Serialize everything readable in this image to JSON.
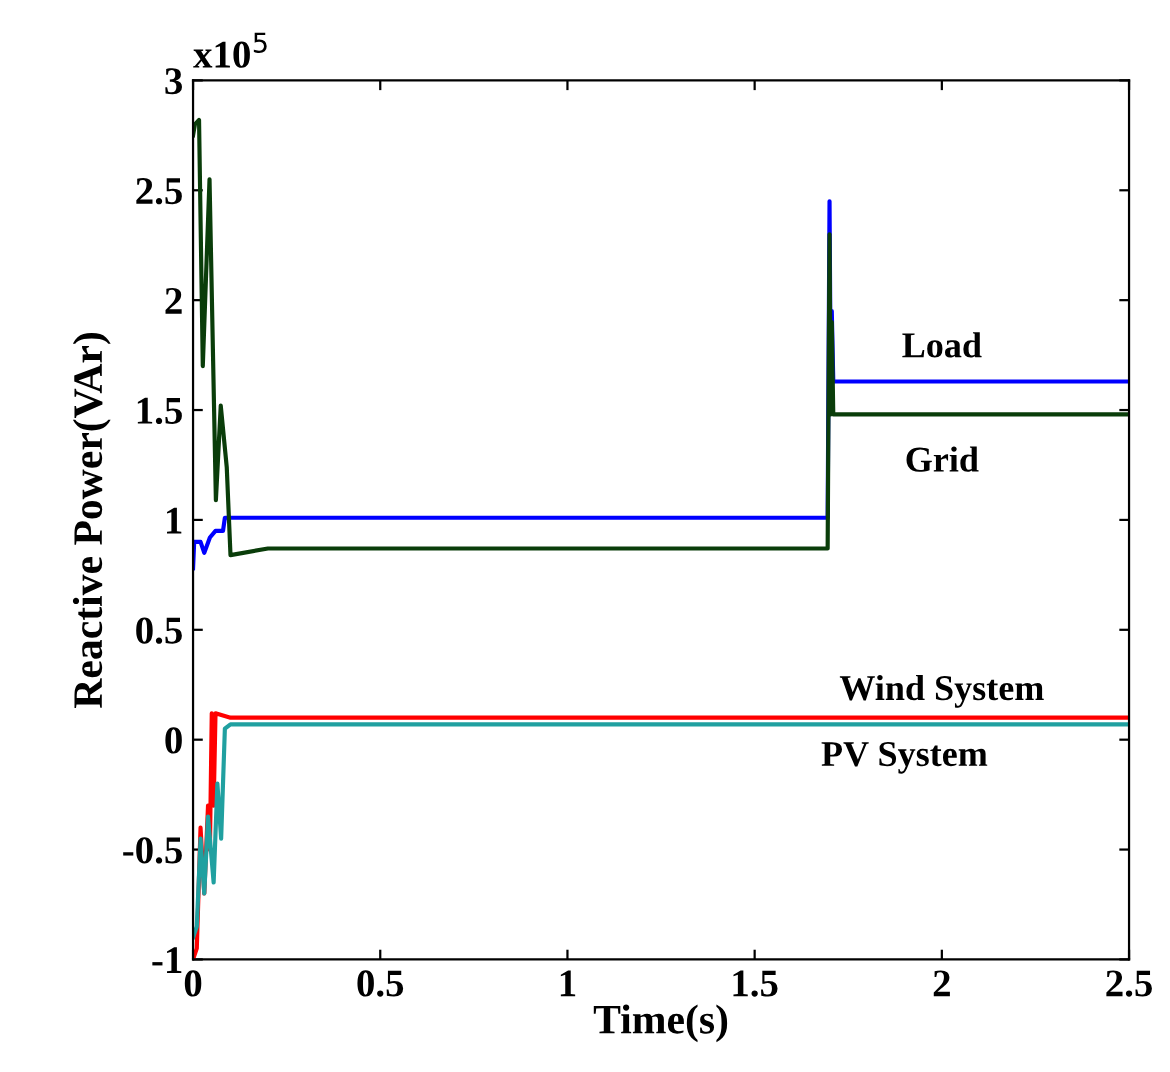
{
  "chart_data": {
    "type": "line",
    "xlabel": "Time(s)",
    "ylabel": "Reactive Power(VAr)",
    "annotations": [
      "x10$^{5}$"
    ],
    "xlim": [
      0,
      2.5
    ],
    "ylim": [
      -1,
      3
    ],
    "xticks": [
      0,
      0.5,
      1,
      1.5,
      2,
      2.5
    ],
    "yticks": [
      -1,
      -0.5,
      0,
      0.5,
      1,
      1.5,
      2,
      2.5,
      3
    ],
    "grid": false,
    "legend": false,
    "line_style": "solid",
    "marker": "none",
    "series": [
      {
        "name": "Load",
        "color": "#0000ff",
        "x": [
          0,
          0.003,
          0.02,
          0.03,
          0.045,
          0.06,
          0.08,
          0.085,
          1.695,
          1.7,
          1.703,
          1.706,
          1.71,
          2.5
        ],
        "values": [
          0.78,
          0.9,
          0.9,
          0.85,
          0.92,
          0.95,
          0.95,
          1.01,
          1.01,
          2.45,
          1.63,
          1.95,
          1.63,
          1.63
        ]
      },
      {
        "name": "Grid",
        "color": "#0a3d0a",
        "x": [
          0,
          0.005,
          0.016,
          0.026,
          0.044,
          0.061,
          0.074,
          0.09,
          0.1,
          0.2,
          0.5,
          1.0,
          1.5,
          1.695,
          1.7,
          1.703,
          1.706,
          1.71,
          2.0,
          2.5
        ],
        "values": [
          2.75,
          2.8,
          2.82,
          1.7,
          2.55,
          1.09,
          1.52,
          1.24,
          0.84,
          0.87,
          0.87,
          0.87,
          0.87,
          0.87,
          2.3,
          1.48,
          1.9,
          1.48,
          1.48,
          1.48
        ]
      },
      {
        "name": "Wind System",
        "color": "#ff0000",
        "x": [
          0,
          0.01,
          0.02,
          0.03,
          0.04,
          0.045,
          0.05,
          0.055,
          0.06,
          0.1,
          2.5
        ],
        "values": [
          -1.0,
          -0.95,
          -0.4,
          -0.7,
          -0.3,
          -0.5,
          0.12,
          -0.3,
          0.12,
          0.1,
          0.1
        ]
      },
      {
        "name": "PV System",
        "color": "#20a0a0",
        "x": [
          0,
          0.01,
          0.02,
          0.03,
          0.04,
          0.055,
          0.065,
          0.075,
          0.085,
          0.1,
          2.5
        ],
        "values": [
          -0.9,
          -0.85,
          -0.45,
          -0.7,
          -0.35,
          -0.65,
          -0.2,
          -0.45,
          0.05,
          0.07,
          0.07
        ]
      }
    ]
  }
}
